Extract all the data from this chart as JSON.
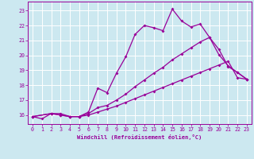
{
  "xlabel": "Windchill (Refroidissement éolien,°C)",
  "bg_color": "#cce8f0",
  "line_color": "#990099",
  "grid_color": "#ffffff",
  "xlim": [
    -0.5,
    23.5
  ],
  "ylim": [
    15.4,
    23.6
  ],
  "yticks": [
    16,
    17,
    18,
    19,
    20,
    21,
    22,
    23
  ],
  "xticks": [
    0,
    1,
    2,
    3,
    4,
    5,
    6,
    7,
    8,
    9,
    10,
    11,
    12,
    13,
    14,
    15,
    16,
    17,
    18,
    19,
    20,
    21,
    22,
    23
  ],
  "line1_x": [
    0,
    1,
    2,
    3,
    4,
    5,
    6,
    7,
    8,
    9,
    10,
    11,
    12,
    13,
    14,
    15,
    16,
    17,
    18,
    19,
    20,
    21,
    22,
    23
  ],
  "line1_y": [
    15.9,
    15.75,
    16.1,
    16.1,
    15.9,
    15.9,
    16.2,
    17.8,
    17.5,
    18.8,
    19.9,
    21.4,
    22.0,
    21.85,
    21.65,
    23.1,
    22.3,
    21.9,
    22.1,
    21.2,
    20.05,
    19.3,
    18.85,
    18.4
  ],
  "line2_x": [
    0,
    2,
    3,
    4,
    5,
    6,
    7,
    8,
    9,
    10,
    11,
    12,
    13,
    14,
    15,
    16,
    17,
    18,
    19,
    20,
    21,
    22,
    23
  ],
  "line2_y": [
    15.9,
    16.1,
    16.0,
    15.9,
    15.9,
    16.1,
    16.5,
    16.65,
    17.0,
    17.4,
    17.9,
    18.35,
    18.8,
    19.2,
    19.7,
    20.1,
    20.5,
    20.9,
    21.2,
    20.4,
    19.25,
    18.85,
    18.4
  ],
  "line3_x": [
    0,
    2,
    3,
    4,
    5,
    6,
    7,
    8,
    9,
    10,
    11,
    12,
    13,
    14,
    15,
    16,
    17,
    18,
    19,
    20,
    21,
    22,
    23
  ],
  "line3_y": [
    15.9,
    16.1,
    16.0,
    15.9,
    15.9,
    16.0,
    16.2,
    16.4,
    16.6,
    16.85,
    17.1,
    17.35,
    17.6,
    17.85,
    18.1,
    18.35,
    18.6,
    18.85,
    19.1,
    19.35,
    19.6,
    18.5,
    18.4
  ]
}
